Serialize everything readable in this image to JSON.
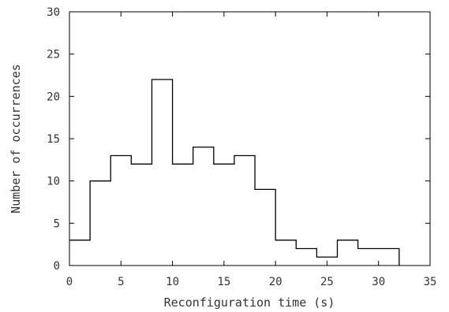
{
  "chart_data": {
    "type": "bar",
    "xlabel": "Reconfiguration time (s)",
    "ylabel": "Number of occurrences",
    "xlim": [
      0,
      35
    ],
    "ylim": [
      0,
      30
    ],
    "xticks": [
      "0",
      "5",
      "10",
      "15",
      "20",
      "25",
      "30",
      "35"
    ],
    "yticks": [
      "0",
      "5",
      "10",
      "15",
      "20",
      "25",
      "30"
    ],
    "bin_edges": [
      0,
      2,
      4,
      6,
      8,
      10,
      12,
      14,
      16,
      18,
      20,
      22,
      24,
      26,
      28,
      30,
      32
    ],
    "values": [
      3,
      10,
      13,
      12,
      22,
      12,
      14,
      12,
      13,
      9,
      3,
      2,
      1,
      3,
      2,
      2
    ],
    "grid": false,
    "style": "step-outline",
    "color": "#000000"
  }
}
